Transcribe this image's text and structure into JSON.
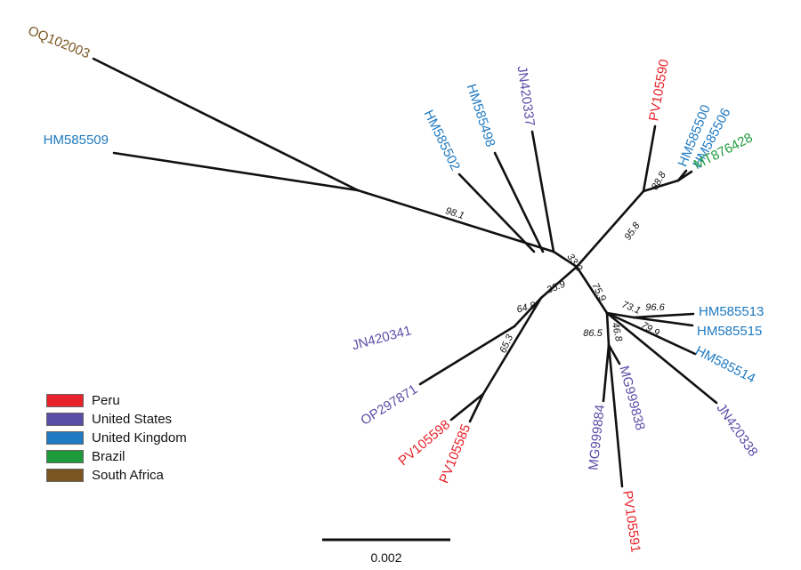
{
  "colors": {
    "peru": "#e8222a",
    "united_states": "#5a4fa8",
    "united_kingdom": "#1f7ac1",
    "brazil": "#1f9a3a",
    "south_africa": "#7a5520"
  },
  "tips": [
    {
      "id": "OQ102003",
      "country": "south_africa"
    },
    {
      "id": "HM585509",
      "country": "united_kingdom"
    },
    {
      "id": "HM585502",
      "country": "united_kingdom"
    },
    {
      "id": "HM585498",
      "country": "united_kingdom"
    },
    {
      "id": "JN420337",
      "country": "united_states"
    },
    {
      "id": "PV105590",
      "country": "peru"
    },
    {
      "id": "HM585500",
      "country": "united_kingdom"
    },
    {
      "id": "HM585506",
      "country": "united_kingdom"
    },
    {
      "id": "MT876428",
      "country": "brazil"
    },
    {
      "id": "HM585513",
      "country": "united_kingdom"
    },
    {
      "id": "HM585515",
      "country": "united_kingdom"
    },
    {
      "id": "HM585514",
      "country": "united_kingdom"
    },
    {
      "id": "JN420338",
      "country": "united_states"
    },
    {
      "id": "MG999838",
      "country": "united_states"
    },
    {
      "id": "MG999884",
      "country": "united_states"
    },
    {
      "id": "PV105591",
      "country": "peru"
    },
    {
      "id": "PV105585",
      "country": "peru"
    },
    {
      "id": "PV105598",
      "country": "peru"
    },
    {
      "id": "OP297871",
      "country": "united_states"
    },
    {
      "id": "JN420341",
      "country": "united_states"
    }
  ],
  "support_values": [
    "98.1",
    "33.2",
    "95.8",
    "88.8",
    "35.9",
    "64.8",
    "65.3",
    "75.9",
    "73.1",
    "96.6",
    "79.9",
    "46.8",
    "86.5"
  ],
  "legend": [
    {
      "label": "Peru",
      "color": "#e8222a"
    },
    {
      "label": "United States",
      "color": "#5a4fa8"
    },
    {
      "label": "United Kingdom",
      "color": "#1f7ac1"
    },
    {
      "label": "Brazil",
      "color": "#1f9a3a"
    },
    {
      "label": "South Africa",
      "color": "#7a5520"
    }
  ],
  "scale_bar": {
    "label": "0.002"
  }
}
